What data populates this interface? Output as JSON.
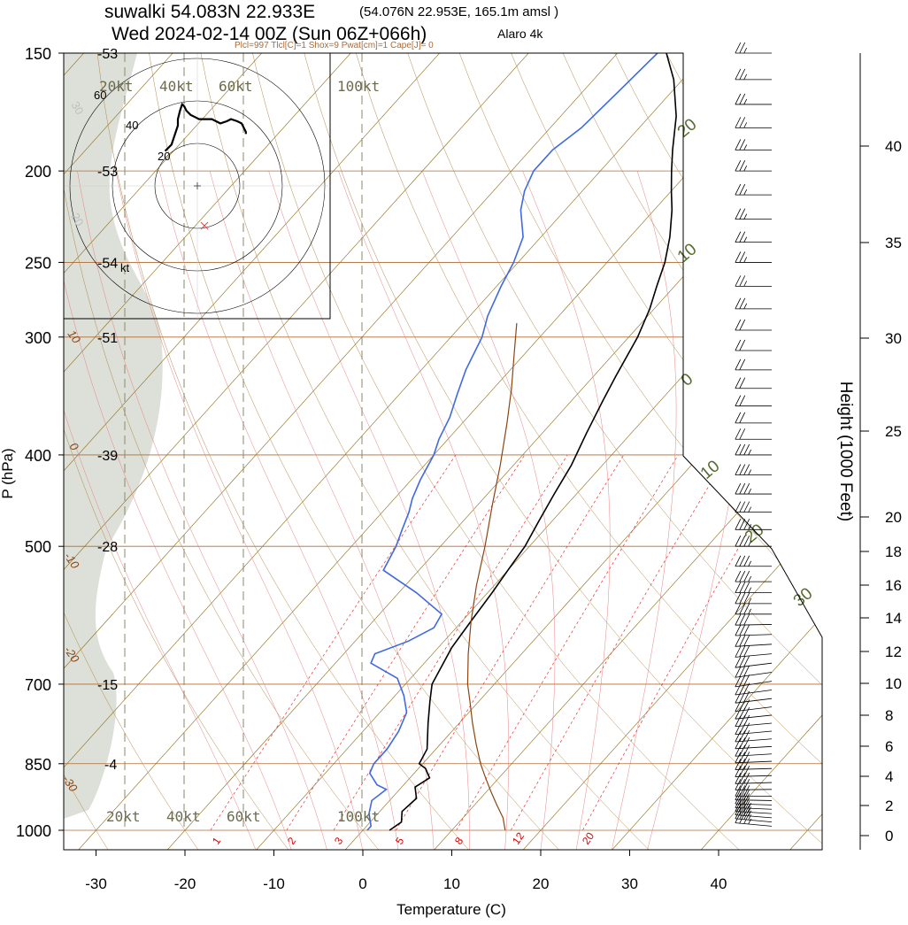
{
  "header": {
    "line1_station": "suwalki 54.083N 22.933E",
    "line1_detail": "(54.076N 22.953E, 165.1m amsl )",
    "line2_time": "Wed 2024-02-14 00Z (Sun 06Z+066h)",
    "line2_model": "Alaro 4k",
    "indices": "Plcl=997 Tlcl[C]=1 Shox=9 Pwat[cm]=1 Cape[J]= 0"
  },
  "chart_data": {
    "type": "line",
    "title": "",
    "xlabel": "Temperature (C)",
    "ylabel": "P (hPa)",
    "y2label": "Height (1000 Feet)",
    "x_ticks": [
      "-30",
      "-20",
      "-10",
      "0",
      "10",
      "20",
      "30",
      "40"
    ],
    "p_ticks": [
      "150",
      "200",
      "250",
      "300",
      "400",
      "500",
      "700",
      "850",
      "1000"
    ],
    "height_ticks": [
      "0",
      "2",
      "4",
      "6",
      "8",
      "10",
      "12",
      "14",
      "16",
      "18",
      "20",
      "25",
      "30",
      "35",
      "40"
    ],
    "left_temp_labels": [
      "-53",
      "-53",
      "-54",
      "-51",
      "-39",
      "-28",
      "-15",
      "-4"
    ],
    "isotherm_labels_left": [
      "10",
      "0",
      "-10",
      "-20",
      "-30"
    ],
    "isotherm_labels_right": [
      "20",
      "10",
      "0",
      "10",
      "20",
      "30"
    ],
    "mixing_ratio_labels": [
      "1",
      "2",
      "3",
      "5",
      "8",
      "12",
      "20"
    ],
    "wind_speed_labels": [
      "20kt",
      "40kt",
      "60kt",
      "100kt"
    ],
    "hodograph": {
      "ring_labels": [
        "20",
        "40",
        "60"
      ],
      "unit": "kt",
      "hidden_labels": [
        "30",
        "20"
      ]
    },
    "series": [
      {
        "name": "temperature",
        "color": "#000000",
        "points": [
          [
            3,
            1000
          ],
          [
            3.5,
            980
          ],
          [
            2.5,
            955
          ],
          [
            2.8,
            925
          ],
          [
            1.5,
            900
          ],
          [
            2.2,
            880
          ],
          [
            1.5,
            870
          ],
          [
            0.8,
            860
          ],
          [
            -0.4,
            850
          ],
          [
            -1,
            820
          ],
          [
            -3.5,
            770
          ],
          [
            -5.5,
            730
          ],
          [
            -7,
            700
          ],
          [
            -8.5,
            640
          ],
          [
            -9,
            600
          ],
          [
            -9.5,
            560
          ],
          [
            -10,
            530
          ],
          [
            -10.5,
            500
          ],
          [
            -11.5,
            470
          ],
          [
            -12.5,
            440
          ],
          [
            -13.5,
            410
          ],
          [
            -15,
            380
          ],
          [
            -16.5,
            350
          ],
          [
            -17.5,
            330
          ],
          [
            -19,
            300
          ],
          [
            -20.5,
            280
          ],
          [
            -22,
            265
          ],
          [
            -23.5,
            250
          ],
          [
            -25.5,
            235
          ],
          [
            -28,
            220
          ],
          [
            -30,
            210
          ],
          [
            -32,
            200
          ],
          [
            -34,
            190
          ],
          [
            -37,
            175
          ],
          [
            -41,
            160
          ],
          [
            -44.5,
            150
          ]
        ]
      },
      {
        "name": "dewpoint",
        "color": "#4169e1",
        "points": [
          [
            0.5,
            1000
          ],
          [
            0.5,
            990
          ],
          [
            -1,
            960
          ],
          [
            -2,
            930
          ],
          [
            -1.5,
            905
          ],
          [
            -3,
            895
          ],
          [
            -5,
            870
          ],
          [
            -5.5,
            850
          ],
          [
            -5.5,
            820
          ],
          [
            -6,
            785
          ],
          [
            -7,
            750
          ],
          [
            -9,
            720
          ],
          [
            -11.5,
            690
          ],
          [
            -16,
            665
          ],
          [
            -16.5,
            650
          ],
          [
            -14,
            630
          ],
          [
            -12.5,
            610
          ],
          [
            -13,
            590
          ],
          [
            -18,
            560
          ],
          [
            -24,
            530
          ],
          [
            -25,
            500
          ],
          [
            -26,
            480
          ],
          [
            -27,
            460
          ],
          [
            -28,
            445
          ],
          [
            -29,
            425
          ],
          [
            -30,
            400
          ],
          [
            -31,
            385
          ],
          [
            -32,
            365
          ],
          [
            -33.5,
            345
          ],
          [
            -35,
            325
          ],
          [
            -36.5,
            300
          ],
          [
            -38,
            285
          ],
          [
            -39.5,
            265
          ],
          [
            -40.5,
            250
          ],
          [
            -42,
            235
          ],
          [
            -45,
            220
          ],
          [
            -46.5,
            210
          ],
          [
            -47.5,
            200
          ],
          [
            -47.5,
            190
          ],
          [
            -46.5,
            180
          ],
          [
            -46,
            165
          ],
          [
            -45.5,
            150
          ]
        ]
      },
      {
        "name": "parcel",
        "color": "#8b4513",
        "points": [
          [
            16,
            1000
          ],
          [
            14.5,
            970
          ],
          [
            12.5,
            940
          ],
          [
            10.5,
            910
          ],
          [
            8.5,
            880
          ],
          [
            6.5,
            850
          ],
          [
            4,
            810
          ],
          [
            1.5,
            770
          ],
          [
            -1,
            730
          ],
          [
            -3,
            700
          ],
          [
            -6,
            650
          ],
          [
            -9,
            600
          ],
          [
            -12,
            550
          ],
          [
            -15,
            500
          ],
          [
            -18.5,
            450
          ],
          [
            -21.5,
            410
          ],
          [
            -25,
            370
          ],
          [
            -28,
            340
          ],
          [
            -31.5,
            310
          ],
          [
            -34,
            290
          ]
        ]
      }
    ],
    "x_range": [
      -34,
      52
    ],
    "p_range": [
      150,
      1000
    ],
    "height_range_kft": [
      0,
      42
    ],
    "hodograph_trace_kt": [
      [
        14,
        17
      ],
      [
        15,
        17
      ],
      [
        17,
        16
      ],
      [
        19,
        15
      ],
      [
        20,
        13
      ],
      [
        21,
        10
      ],
      [
        20,
        8
      ],
      [
        19,
        5
      ],
      [
        20,
        3
      ],
      [
        21,
        1
      ],
      [
        21,
        -2
      ],
      [
        21,
        -5
      ],
      [
        22,
        -7
      ],
      [
        23,
        -9
      ],
      [
        25,
        -11
      ],
      [
        27,
        -12
      ],
      [
        28,
        -13
      ],
      [
        25,
        -14
      ],
      [
        21,
        -15
      ],
      [
        18,
        -15
      ],
      [
        15,
        -16
      ],
      [
        12,
        -17
      ],
      [
        9,
        -18
      ],
      [
        7,
        -20
      ],
      [
        6,
        -21
      ]
    ],
    "wind_profile": [
      {
        "p": 990,
        "spd": 25,
        "dir": 80
      },
      {
        "p": 980,
        "spd": 25,
        "dir": 80
      },
      {
        "p": 970,
        "spd": 25,
        "dir": 82
      },
      {
        "p": 960,
        "spd": 25,
        "dir": 85
      },
      {
        "p": 950,
        "spd": 25,
        "dir": 88
      },
      {
        "p": 940,
        "spd": 30,
        "dir": 90
      },
      {
        "p": 930,
        "spd": 30,
        "dir": 92
      },
      {
        "p": 920,
        "spd": 30,
        "dir": 95
      },
      {
        "p": 905,
        "spd": 30,
        "dir": 97
      },
      {
        "p": 890,
        "spd": 30,
        "dir": 100
      },
      {
        "p": 875,
        "spd": 30,
        "dir": 100
      },
      {
        "p": 860,
        "spd": 30,
        "dir": 100
      },
      {
        "p": 845,
        "spd": 30,
        "dir": 102
      },
      {
        "p": 830,
        "spd": 30,
        "dir": 105
      },
      {
        "p": 815,
        "spd": 30,
        "dir": 105
      },
      {
        "p": 800,
        "spd": 30,
        "dir": 108
      },
      {
        "p": 785,
        "spd": 30,
        "dir": 110
      },
      {
        "p": 770,
        "spd": 30,
        "dir": 110
      },
      {
        "p": 755,
        "spd": 30,
        "dir": 112
      },
      {
        "p": 740,
        "spd": 30,
        "dir": 115
      },
      {
        "p": 725,
        "spd": 30,
        "dir": 115
      },
      {
        "p": 710,
        "spd": 30,
        "dir": 117
      },
      {
        "p": 695,
        "spd": 30,
        "dir": 120
      },
      {
        "p": 680,
        "spd": 30,
        "dir": 118
      },
      {
        "p": 665,
        "spd": 30,
        "dir": 115
      },
      {
        "p": 650,
        "spd": 30,
        "dir": 110
      },
      {
        "p": 635,
        "spd": 30,
        "dir": 105
      },
      {
        "p": 620,
        "spd": 30,
        "dir": 100
      },
      {
        "p": 605,
        "spd": 30,
        "dir": 98
      },
      {
        "p": 590,
        "spd": 25,
        "dir": 95
      },
      {
        "p": 575,
        "spd": 25,
        "dir": 95
      },
      {
        "p": 560,
        "spd": 25,
        "dir": 95
      },
      {
        "p": 545,
        "spd": 25,
        "dir": 95
      },
      {
        "p": 525,
        "spd": 25,
        "dir": 95
      },
      {
        "p": 500,
        "spd": 25,
        "dir": 95
      },
      {
        "p": 480,
        "spd": 25,
        "dir": 95
      },
      {
        "p": 460,
        "spd": 25,
        "dir": 95
      },
      {
        "p": 440,
        "spd": 25,
        "dir": 95
      },
      {
        "p": 420,
        "spd": 25,
        "dir": 95
      },
      {
        "p": 400,
        "spd": 25,
        "dir": 95
      },
      {
        "p": 385,
        "spd": 20,
        "dir": 95
      },
      {
        "p": 370,
        "spd": 20,
        "dir": 95
      },
      {
        "p": 355,
        "spd": 20,
        "dir": 95
      },
      {
        "p": 340,
        "spd": 20,
        "dir": 95
      },
      {
        "p": 325,
        "spd": 20,
        "dir": 95
      },
      {
        "p": 310,
        "spd": 20,
        "dir": 95
      },
      {
        "p": 295,
        "spd": 20,
        "dir": 95
      },
      {
        "p": 280,
        "spd": 15,
        "dir": 95
      },
      {
        "p": 265,
        "spd": 15,
        "dir": 95
      },
      {
        "p": 250,
        "spd": 15,
        "dir": 95
      },
      {
        "p": 238,
        "spd": 15,
        "dir": 95
      },
      {
        "p": 225,
        "spd": 15,
        "dir": 95
      },
      {
        "p": 212,
        "spd": 15,
        "dir": 95
      },
      {
        "p": 200,
        "spd": 15,
        "dir": 95
      },
      {
        "p": 190,
        "spd": 15,
        "dir": 95
      },
      {
        "p": 180,
        "spd": 15,
        "dir": 95
      },
      {
        "p": 170,
        "spd": 15,
        "dir": 95
      },
      {
        "p": 160,
        "spd": 15,
        "dir": 95
      },
      {
        "p": 150,
        "spd": 15,
        "dir": 95
      }
    ]
  },
  "colors": {
    "temperature": "#000000",
    "dewpoint": "#4169e1",
    "parcel": "#8b4513",
    "isobar": "#b06a32",
    "isotherm": "#8b6914",
    "dry_adiabat": "#b08a4a",
    "moist_adiabat": "#e88080",
    "mixing_ratio": "#e83030",
    "shading": "#dde0d8",
    "label_green": "#556b2f",
    "label_red": "#dd0000"
  }
}
